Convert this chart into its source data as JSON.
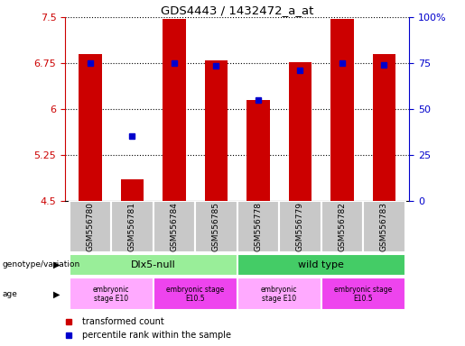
{
  "title": "GDS4443 / 1432472_a_at",
  "samples": [
    "GSM556780",
    "GSM556781",
    "GSM556784",
    "GSM556785",
    "GSM556778",
    "GSM556779",
    "GSM556782",
    "GSM556783"
  ],
  "bar_values": [
    6.9,
    4.85,
    7.47,
    6.8,
    6.15,
    6.76,
    7.47,
    6.9
  ],
  "percentile_values": [
    6.75,
    5.55,
    6.75,
    6.7,
    6.15,
    6.64,
    6.75,
    6.72
  ],
  "bar_bottom": 4.5,
  "ylim": [
    4.5,
    7.5
  ],
  "right_ylim": [
    0,
    100
  ],
  "right_yticks": [
    0,
    25,
    50,
    75,
    100
  ],
  "right_yticklabels": [
    "0",
    "25",
    "50",
    "75",
    "100%"
  ],
  "left_yticks": [
    4.5,
    5.25,
    6.0,
    6.75,
    7.5
  ],
  "left_yticklabels": [
    "4.5",
    "5.25",
    "6",
    "6.75",
    "7.5"
  ],
  "bar_color": "#cc0000",
  "dot_color": "#0000cc",
  "tick_label_color_left": "#cc0000",
  "tick_label_color_right": "#0000cc",
  "genotype_groups": [
    {
      "label": "Dlx5-null",
      "start": 0,
      "end": 3,
      "color": "#99ee99"
    },
    {
      "label": "wild type",
      "start": 4,
      "end": 7,
      "color": "#44cc66"
    }
  ],
  "age_groups": [
    {
      "label": "embryonic\nstage E10",
      "start": 0,
      "end": 1,
      "color": "#ffaaff"
    },
    {
      "label": "embryonic stage\nE10.5",
      "start": 2,
      "end": 3,
      "color": "#ee44ee"
    },
    {
      "label": "embryonic\nstage E10",
      "start": 4,
      "end": 5,
      "color": "#ffaaff"
    },
    {
      "label": "embryonic stage\nE10.5",
      "start": 6,
      "end": 7,
      "color": "#ee44ee"
    }
  ],
  "bar_width": 0.55,
  "sample_bg_color": "#c8c8c8",
  "label_genotype": "genotype/variation",
  "label_age": "age",
  "legend_bar_label": "transformed count",
  "legend_dot_label": "percentile rank within the sample"
}
